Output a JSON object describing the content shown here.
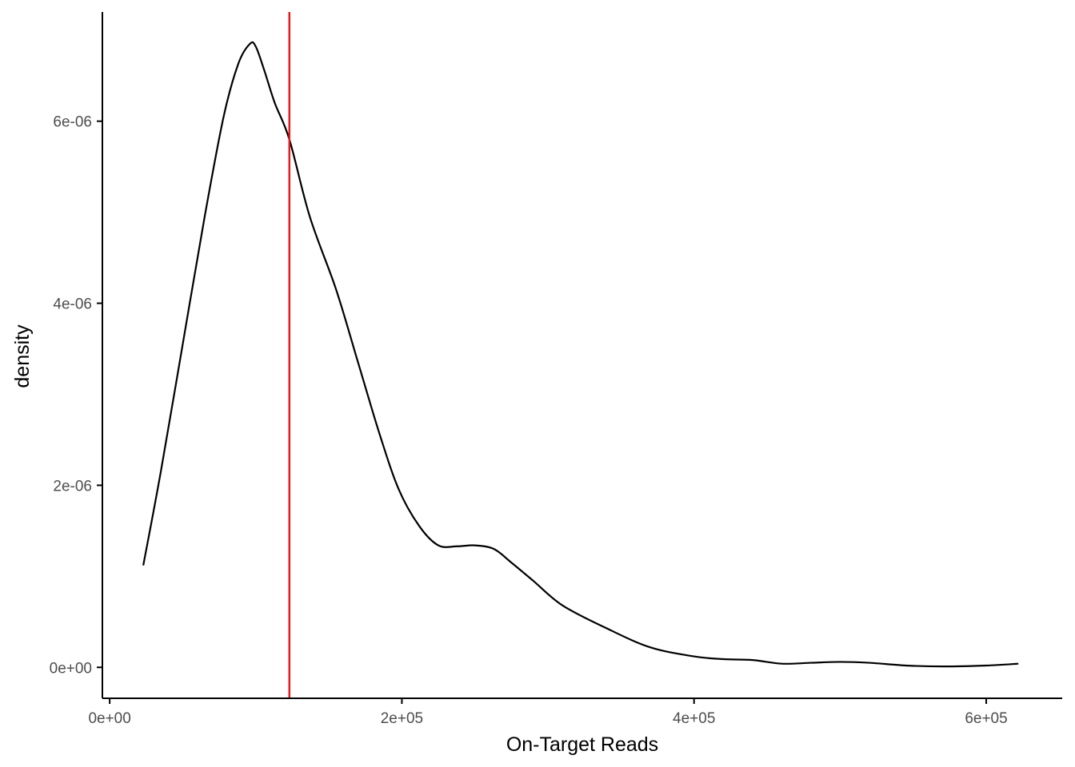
{
  "chart_data": {
    "type": "line",
    "title": "",
    "xlabel": "On-Target Reads",
    "ylabel": "density",
    "xlim": [
      -5000,
      652000
    ],
    "ylim": [
      -3.4e-07,
      7.2e-06
    ],
    "x_ticks": [
      {
        "value": 0,
        "label": "0e+00"
      },
      {
        "value": 200000,
        "label": "2e+05"
      },
      {
        "value": 400000,
        "label": "4e+05"
      },
      {
        "value": 600000,
        "label": "6e+05"
      }
    ],
    "y_ticks": [
      {
        "value": 0,
        "label": "0e+00"
      },
      {
        "value": 2e-06,
        "label": "2e-06"
      },
      {
        "value": 4e-06,
        "label": "4e-06"
      },
      {
        "value": 6e-06,
        "label": "6e-06"
      }
    ],
    "grid": false,
    "legend": "none",
    "series": [
      {
        "color": "#000000",
        "x": [
          23000,
          35000,
          50000,
          65000,
          78000,
          88000,
          96000,
          100000,
          106000,
          113000,
          123000,
          137000,
          155000,
          170000,
          185000,
          198000,
          212000,
          225000,
          238000,
          250000,
          263000,
          275000,
          290000,
          310000,
          340000,
          370000,
          400000,
          420000,
          440000,
          460000,
          480000,
          500000,
          520000,
          545000,
          570000,
          600000,
          622000
        ],
        "y": [
          1.12e-06,
          2.15e-06,
          3.55e-06,
          4.95e-06,
          6.05e-06,
          6.63e-06,
          6.85e-06,
          6.82e-06,
          6.55e-06,
          6.2e-06,
          5.8e-06,
          4.95e-06,
          4.15e-06,
          3.35e-06,
          2.55e-06,
          1.95e-06,
          1.55e-06,
          1.34e-06,
          1.33e-06,
          1.34e-06,
          1.3e-06,
          1.15e-06,
          9.5e-07,
          6.8e-07,
          4.3e-07,
          2.2e-07,
          1.2e-07,
          9e-08,
          8e-08,
          4e-08,
          5e-08,
          6e-08,
          5e-08,
          2e-08,
          1e-08,
          2e-08,
          4e-08
        ]
      }
    ],
    "annotations": [
      {
        "type": "vline",
        "x": 123000,
        "color": "#e41a1c"
      }
    ]
  }
}
